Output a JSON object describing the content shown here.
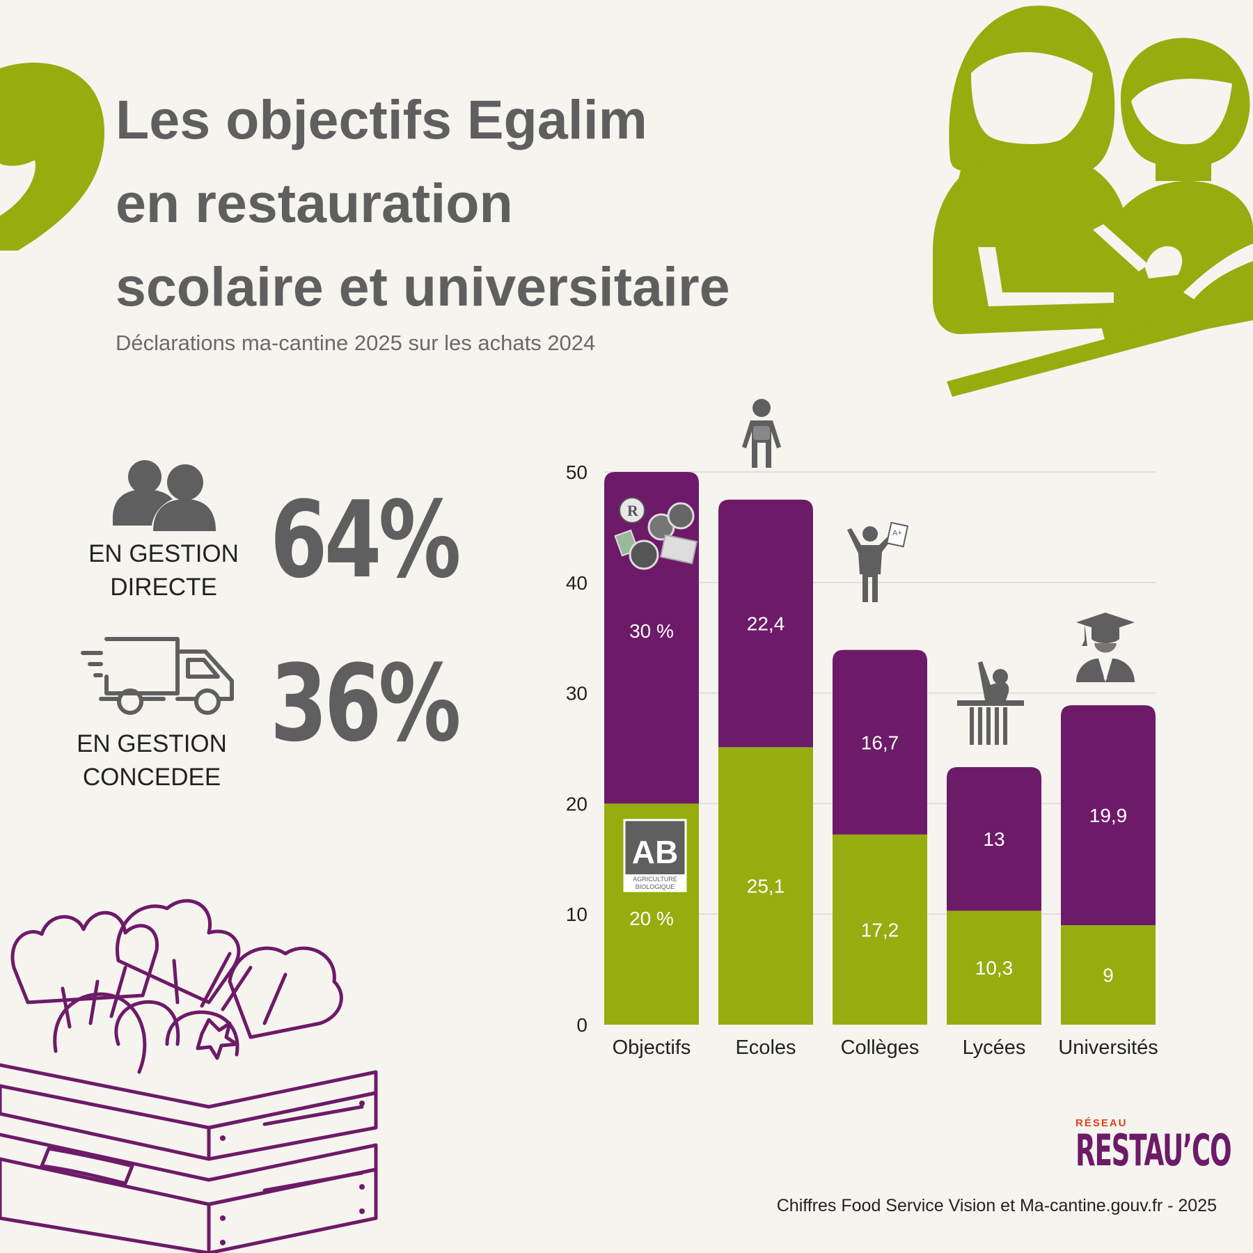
{
  "header": {
    "title_lines": [
      "Les objectifs Egalim",
      "en restauration",
      "scolaire et universitaire"
    ],
    "subtitle": "Déclarations ma-cantine 2025 sur les achats 2024"
  },
  "stats": {
    "direct": {
      "value": "64%",
      "label_lines": [
        "EN GESTION",
        "DIRECTE"
      ],
      "icon": "people-icon"
    },
    "concede": {
      "value": "36%",
      "label_lines": [
        "EN GESTION",
        "CONCEDEE"
      ],
      "icon": "truck-icon"
    }
  },
  "colors": {
    "green": "#95ad0f",
    "purple": "#6d1a68",
    "text": "#5f5f5f",
    "background": "#f6f4ef"
  },
  "chart_data": {
    "type": "bar",
    "stacked": true,
    "categories": [
      "Objectifs",
      "Ecoles",
      "Collèges",
      "Lycées",
      "Universités"
    ],
    "series": [
      {
        "values": [
          20,
          25.1,
          17.2,
          10.3,
          9
        ],
        "labels": [
          "20 %",
          "25,1",
          "17,2",
          "10,3",
          "9"
        ],
        "color": "#95ad0f"
      },
      {
        "values": [
          30,
          22.4,
          16.7,
          13,
          19.9
        ],
        "labels": [
          "30 %",
          "22,4",
          "16,7",
          "13",
          "19,9"
        ],
        "color": "#6d1a68"
      }
    ],
    "ylim": [
      0,
      50
    ],
    "yticks": [
      0,
      10,
      20,
      30,
      40,
      50
    ],
    "grid": true,
    "category_icons": [
      "label-badges-icon",
      "student-backpack-icon",
      "student-grade-sheet-icon",
      "student-desk-icon",
      "graduate-icon"
    ]
  },
  "logo": {
    "small": "RÉSEAU",
    "main": "RESTAU’CO"
  },
  "source": "Chiffres Food Service Vision et Ma-cantine.gouv.fr - 2025"
}
